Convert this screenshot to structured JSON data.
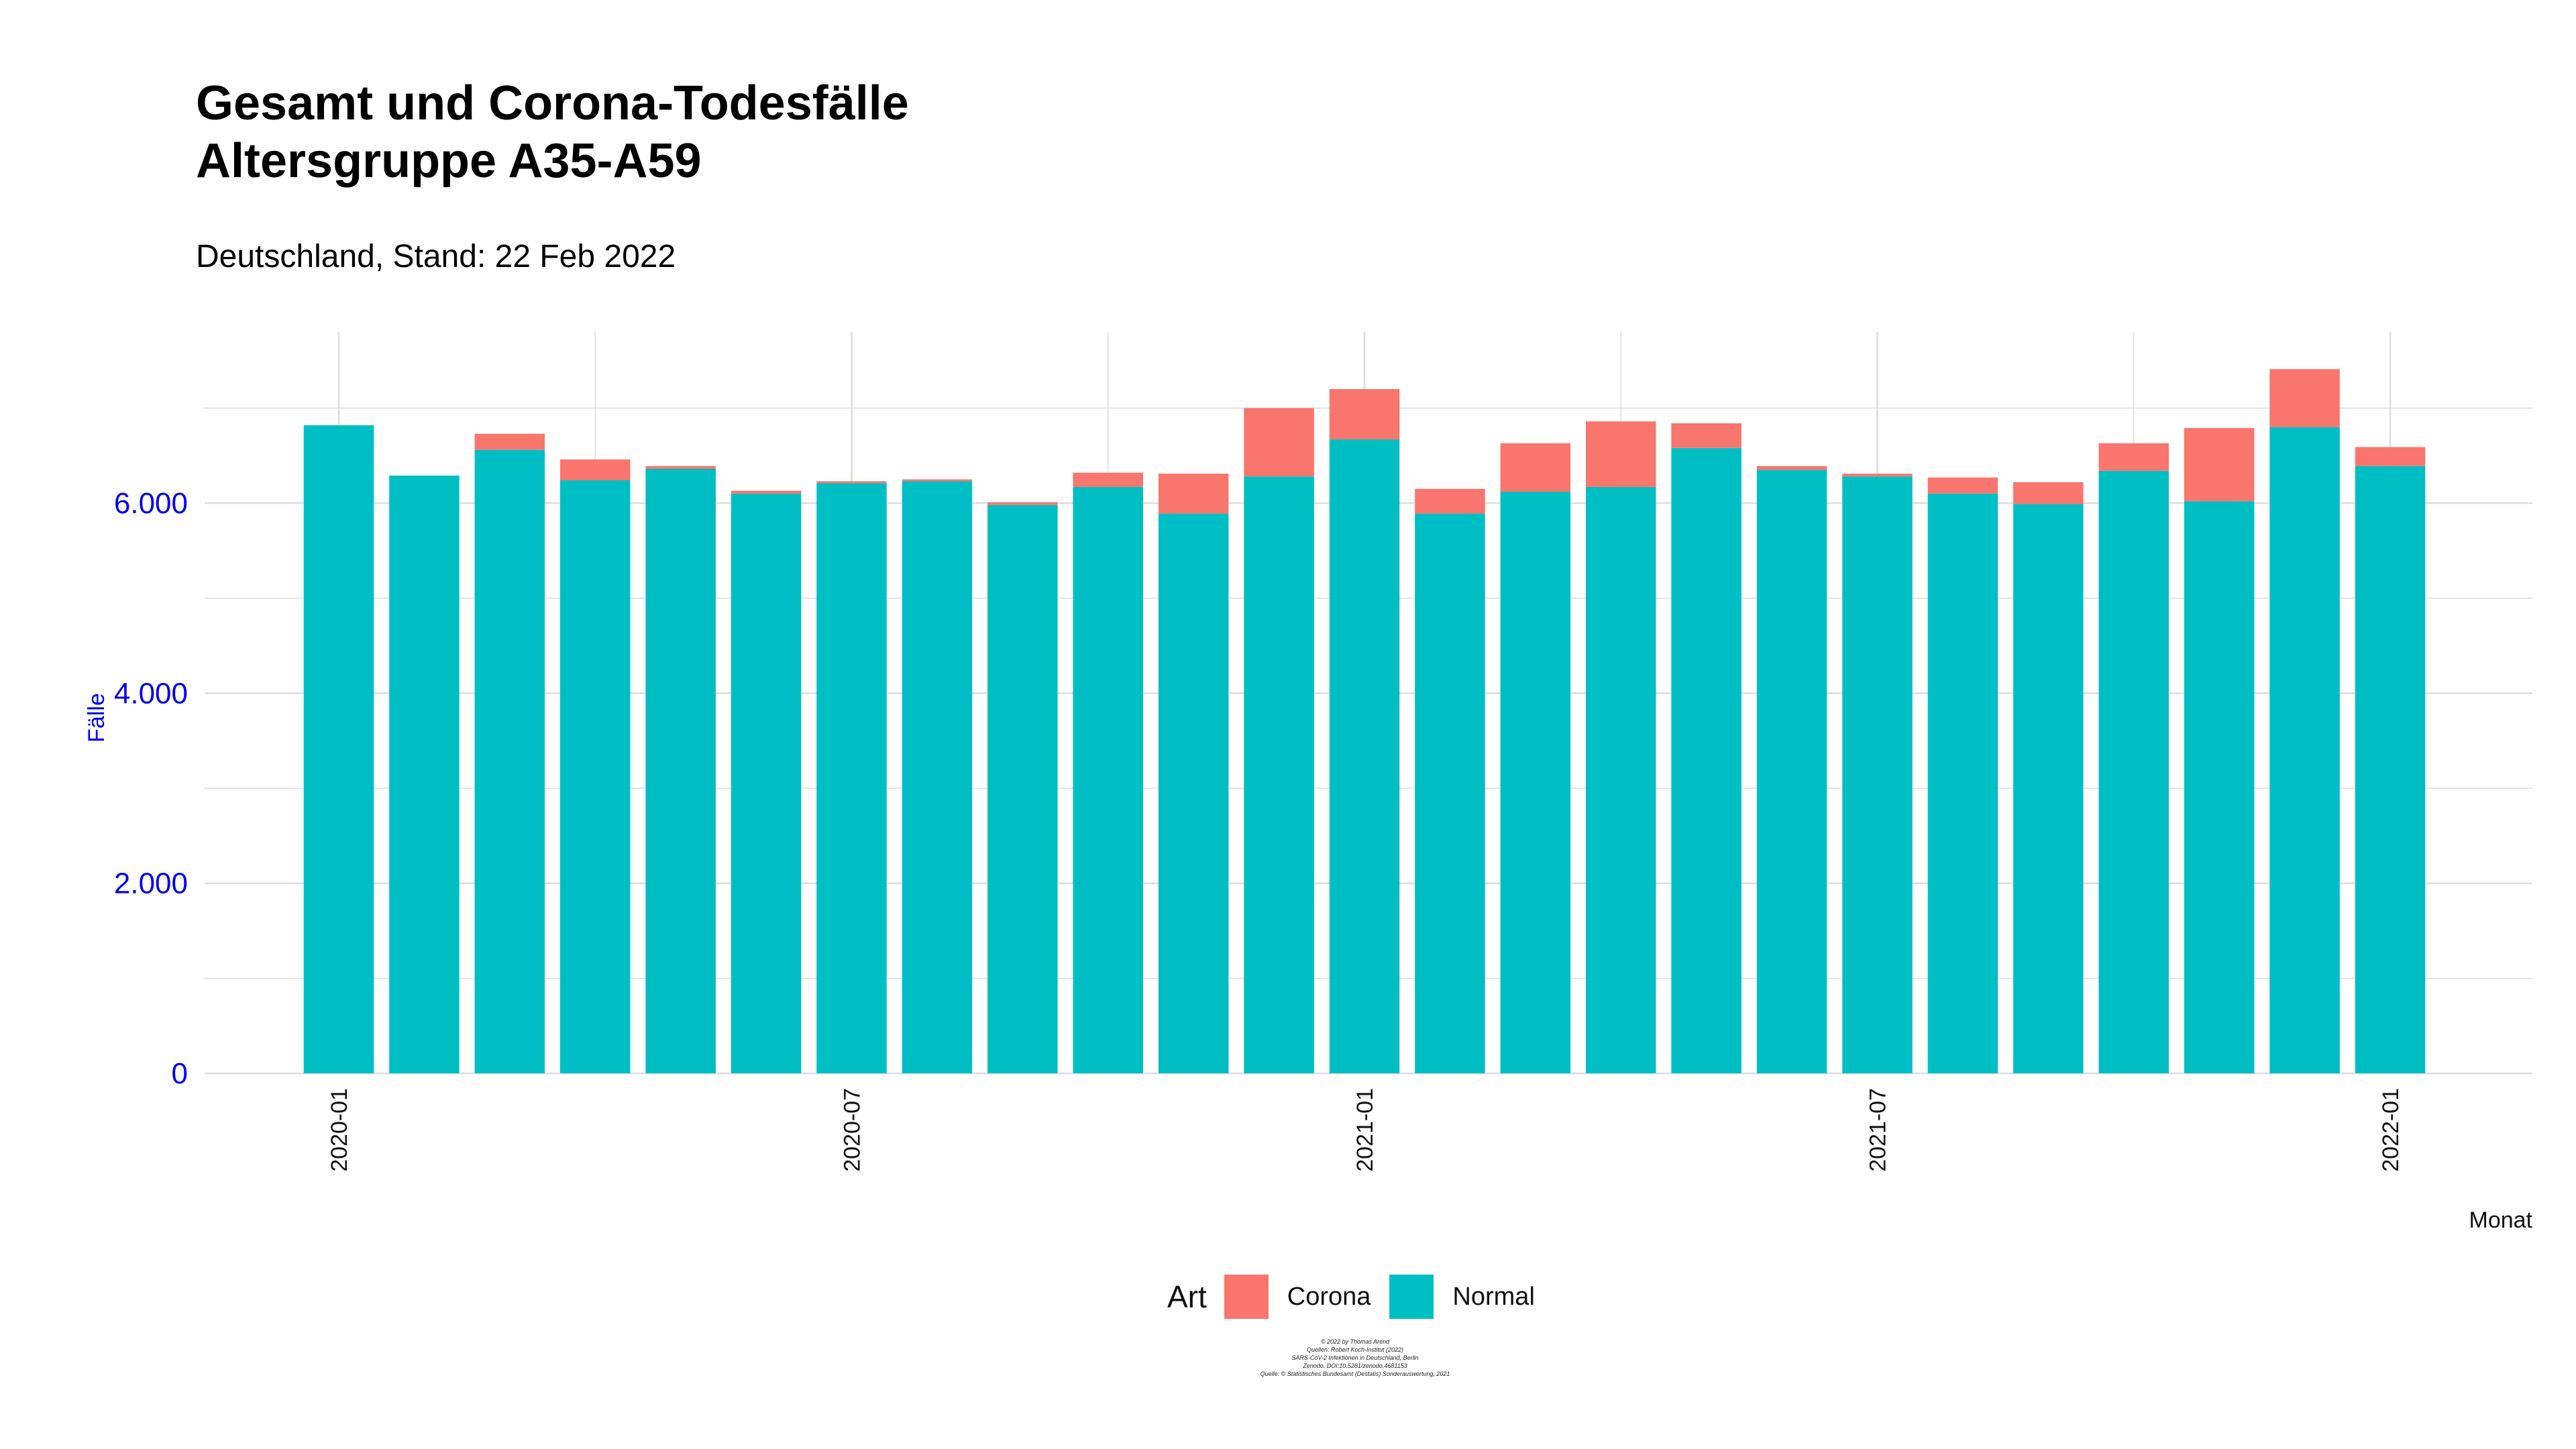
{
  "chart_data": {
    "type": "bar",
    "stacked": true,
    "title_lines": [
      "Gesamt und Corona-Todesfälle",
      "Altersgruppe A35-A59"
    ],
    "subtitle": "Deutschland, Stand: 22 Feb 2022",
    "xlabel": "Monat",
    "ylabel": "Fälle",
    "ylim": [
      0,
      7800
    ],
    "yticks": [
      0,
      2000,
      4000,
      6000
    ],
    "ytick_labels": [
      "0",
      "2.000",
      "4.000",
      "6.000"
    ],
    "xticks": [
      "2020-01",
      "2020-07",
      "2021-01",
      "2021-07",
      "2022-01"
    ],
    "grid": true,
    "legend_position": "bottom",
    "legend_title": "Art",
    "categories": [
      "2020-01",
      "2020-02",
      "2020-03",
      "2020-04",
      "2020-05",
      "2020-06",
      "2020-07",
      "2020-08",
      "2020-09",
      "2020-10",
      "2020-11",
      "2020-12",
      "2021-01",
      "2021-02",
      "2021-03",
      "2021-04",
      "2021-05",
      "2021-06",
      "2021-07",
      "2021-08",
      "2021-09",
      "2021-10",
      "2021-11",
      "2021-12",
      "2022-01"
    ],
    "series": [
      {
        "name": "Normal",
        "color": "#00bfc4",
        "values": [
          6820,
          6290,
          6560,
          6240,
          6360,
          6100,
          6210,
          6230,
          5980,
          6170,
          5890,
          6280,
          6670,
          5890,
          6120,
          6170,
          6580,
          6350,
          6280,
          6100,
          5990,
          6340,
          6020,
          6800,
          6390
        ]
      },
      {
        "name": "Corona",
        "color": "#f8766d",
        "values": [
          0,
          0,
          170,
          220,
          30,
          30,
          20,
          20,
          30,
          150,
          420,
          720,
          530,
          260,
          510,
          690,
          260,
          40,
          30,
          170,
          230,
          290,
          770,
          610,
          200
        ]
      }
    ],
    "caption_lines": [
      "© 2022 by Thomas Arend",
      "Quellen: Robert Koch-Institut (2022)",
      "SARS-CoV-2 Infektionen in Deutschland, Berlin",
      "Zenodo. DOI:10.5281/zenodo.4681153",
      "Quelle: © Statistisches Bundesamt (Destatis) Sonderauswertung, 2021"
    ]
  }
}
